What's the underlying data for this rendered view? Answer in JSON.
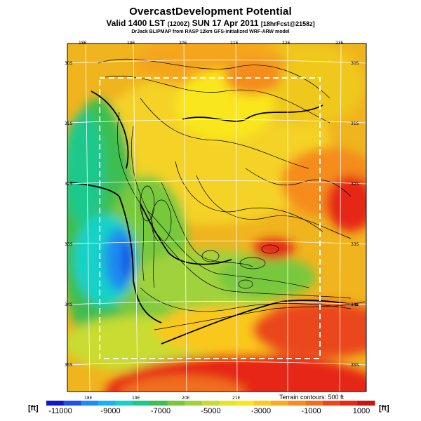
{
  "header": {
    "title": "OvercastDevelopment Potential",
    "subtitle_main": "Valid 1400 LST",
    "subtitle_z": "(1200Z)",
    "subtitle_date": "SUN 17 Apr 2011",
    "subtitle_fcst": "[18hrFcst@2158z]",
    "credit": "DrJack BLIPMAP from RASP 12km GFS-initialized WRF-ARW model"
  },
  "map": {
    "lon_top_labels": [
      "18E",
      "19E",
      "20E",
      "21E",
      "22E",
      "23E"
    ],
    "lon_bottom_labels": [
      "18E",
      "19E",
      "20E",
      "21E"
    ],
    "lat_left_labels": [
      "30S",
      "31S",
      "32S",
      "33S",
      "34S",
      "35S"
    ],
    "lat_right_labels": [
      "30S",
      "31S",
      "32S",
      "33S",
      "34S",
      "35S"
    ],
    "terrain_note": "Terrain contours: 500 ft"
  },
  "colorbar": {
    "unit_left": "[ft]",
    "unit_right": "[ft]",
    "tick_labels": [
      "-11000",
      "-9000",
      "-7000",
      "-5000",
      "-3000",
      "-1000",
      "1000"
    ],
    "colors": [
      "#1414c8",
      "#1e50e6",
      "#1e8cf0",
      "#14b4f0",
      "#14d2c8",
      "#1ec88c",
      "#3cbe50",
      "#78c83c",
      "#a0d23c",
      "#c8dc32",
      "#e6e628",
      "#fae61e",
      "#fac81e",
      "#faaa1e",
      "#f58c1e",
      "#f06e1e",
      "#eb461e",
      "#e62814",
      "#c81414"
    ]
  },
  "legend_colors": {
    "deep_blue": "#1446e6",
    "cyan": "#14b4f0",
    "green": "#3cbe50",
    "yellow": "#fae61e",
    "orange": "#f58c1e",
    "red": "#e62814"
  }
}
